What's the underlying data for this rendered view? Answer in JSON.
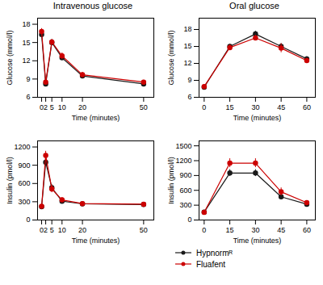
{
  "chart_data": [
    {
      "type": "line",
      "title": "Intravenous glucose",
      "x_label": "Time (minutes)",
      "y_label": "Glucose (mmol/l)",
      "x": [
        0,
        2,
        5,
        10,
        20,
        50
      ],
      "xlim": [
        -2,
        55
      ],
      "xticks": [
        0,
        2,
        5,
        10,
        20,
        50
      ],
      "ylim": [
        6,
        19
      ],
      "yticks": [
        6,
        9,
        12,
        15,
        18
      ],
      "series": [
        {
          "name": "Hypnormᴿ",
          "color": "#1a1a1a",
          "marker": "circle",
          "values": [
            16.3,
            8.2,
            15.0,
            12.5,
            9.5,
            8.2
          ],
          "error": [
            0.4,
            0.3,
            0.5,
            0.4,
            0.3,
            0.3
          ]
        },
        {
          "name": "Fluafent",
          "color": "#cc0000",
          "marker": "circle",
          "values": [
            16.8,
            8.5,
            15.1,
            12.8,
            9.7,
            8.5
          ],
          "error": [
            0.5,
            0.4,
            0.4,
            0.5,
            0.4,
            0.3
          ]
        }
      ]
    },
    {
      "type": "line",
      "title": "Oral glucose",
      "x_label": "Time (minutes)",
      "y_label": "Glucose (mmol/l)",
      "x": [
        0,
        15,
        30,
        45,
        60
      ],
      "xlim": [
        -3,
        65
      ],
      "xticks": [
        0,
        15,
        30,
        45,
        60
      ],
      "ylim": [
        6,
        20
      ],
      "yticks": [
        6,
        9,
        12,
        15,
        18
      ],
      "series": [
        {
          "name": "Hypnormᴿ",
          "color": "#1a1a1a",
          "marker": "circle",
          "values": [
            7.8,
            15.0,
            17.2,
            15.0,
            12.8
          ],
          "error": [
            0.2,
            0.4,
            0.5,
            0.5,
            0.4
          ]
        },
        {
          "name": "Fluafent",
          "color": "#cc0000",
          "marker": "circle",
          "values": [
            7.9,
            14.8,
            16.5,
            14.7,
            12.5
          ],
          "error": [
            0.3,
            0.5,
            0.5,
            0.8,
            0.4
          ]
        }
      ]
    },
    {
      "type": "line",
      "x_label": "Time (minutes)",
      "y_label": "Insulin (pmol/l)",
      "x": [
        0,
        2,
        5,
        10,
        20,
        50
      ],
      "xlim": [
        -2,
        55
      ],
      "xticks": [
        0,
        2,
        5,
        10,
        20,
        50
      ],
      "ylim": [
        0,
        1300
      ],
      "yticks": [
        0,
        300,
        600,
        900,
        1200
      ],
      "series": [
        {
          "name": "Hypnormᴿ",
          "color": "#1a1a1a",
          "marker": "circle",
          "values": [
            220,
            950,
            530,
            310,
            265,
            255
          ],
          "error": [
            20,
            60,
            50,
            30,
            20,
            20
          ]
        },
        {
          "name": "Fluafent",
          "color": "#cc0000",
          "marker": "circle",
          "values": [
            225,
            1060,
            510,
            330,
            270,
            260
          ],
          "error": [
            25,
            70,
            60,
            40,
            25,
            25
          ]
        }
      ]
    },
    {
      "type": "line",
      "x_label": "Time (minutes)",
      "y_label": "Insulin (pmol/l)",
      "x": [
        0,
        15,
        30,
        45,
        60
      ],
      "xlim": [
        -3,
        65
      ],
      "xticks": [
        0,
        15,
        30,
        45,
        60
      ],
      "ylim": [
        0,
        1600
      ],
      "yticks": [
        0,
        300,
        600,
        900,
        1200,
        1500
      ],
      "legend": "bottom",
      "series": [
        {
          "name": "Hypnormᴿ",
          "color": "#1a1a1a",
          "marker": "circle",
          "values": [
            160,
            950,
            950,
            470,
            320
          ],
          "error": [
            20,
            70,
            70,
            50,
            30
          ]
        },
        {
          "name": "Fluafent",
          "color": "#cc0000",
          "marker": "circle",
          "values": [
            155,
            1150,
            1150,
            570,
            350
          ],
          "error": [
            25,
            90,
            90,
            80,
            40
          ]
        }
      ]
    }
  ]
}
